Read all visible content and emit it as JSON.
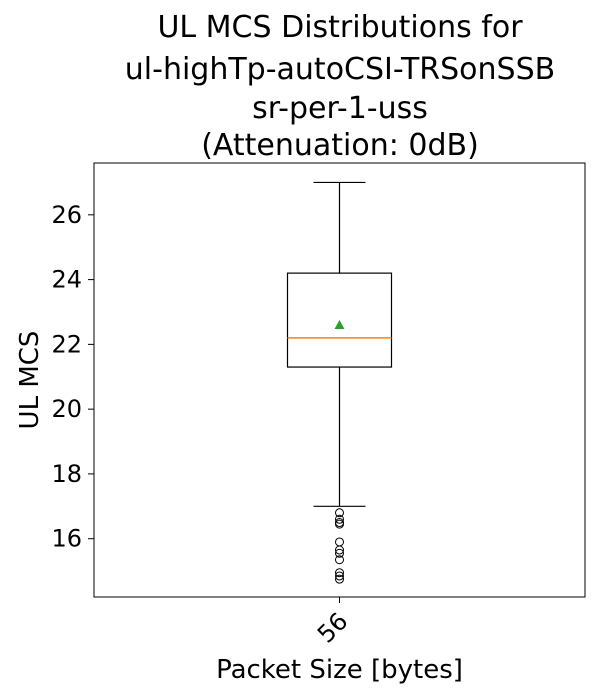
{
  "chart_data": {
    "type": "box",
    "title_lines": [
      "UL MCS Distributions for",
      "ul-highTp-autoCSI-TRSonSSB",
      "sr-per-1-uss",
      "(Attenuation: 0dB)"
    ],
    "xlabel": "Packet Size [bytes]",
    "ylabel": "UL MCS",
    "ylim": [
      14.2,
      27.6
    ],
    "yticks": [
      16,
      18,
      20,
      22,
      24,
      26
    ],
    "categories": [
      "56"
    ],
    "boxes": [
      {
        "category": "56",
        "whisker_low": 17.0,
        "q1": 21.3,
        "median": 22.2,
        "q3": 24.2,
        "whisker_high": 27.0,
        "mean": 22.6,
        "outliers": [
          16.8,
          16.6,
          16.5,
          16.45,
          15.9,
          15.65,
          15.55,
          15.35,
          14.95,
          14.85,
          14.75
        ]
      }
    ],
    "colors": {
      "median": "#ff7f0e",
      "mean": "#2ca02c",
      "box": "#000000"
    },
    "grid": false
  }
}
